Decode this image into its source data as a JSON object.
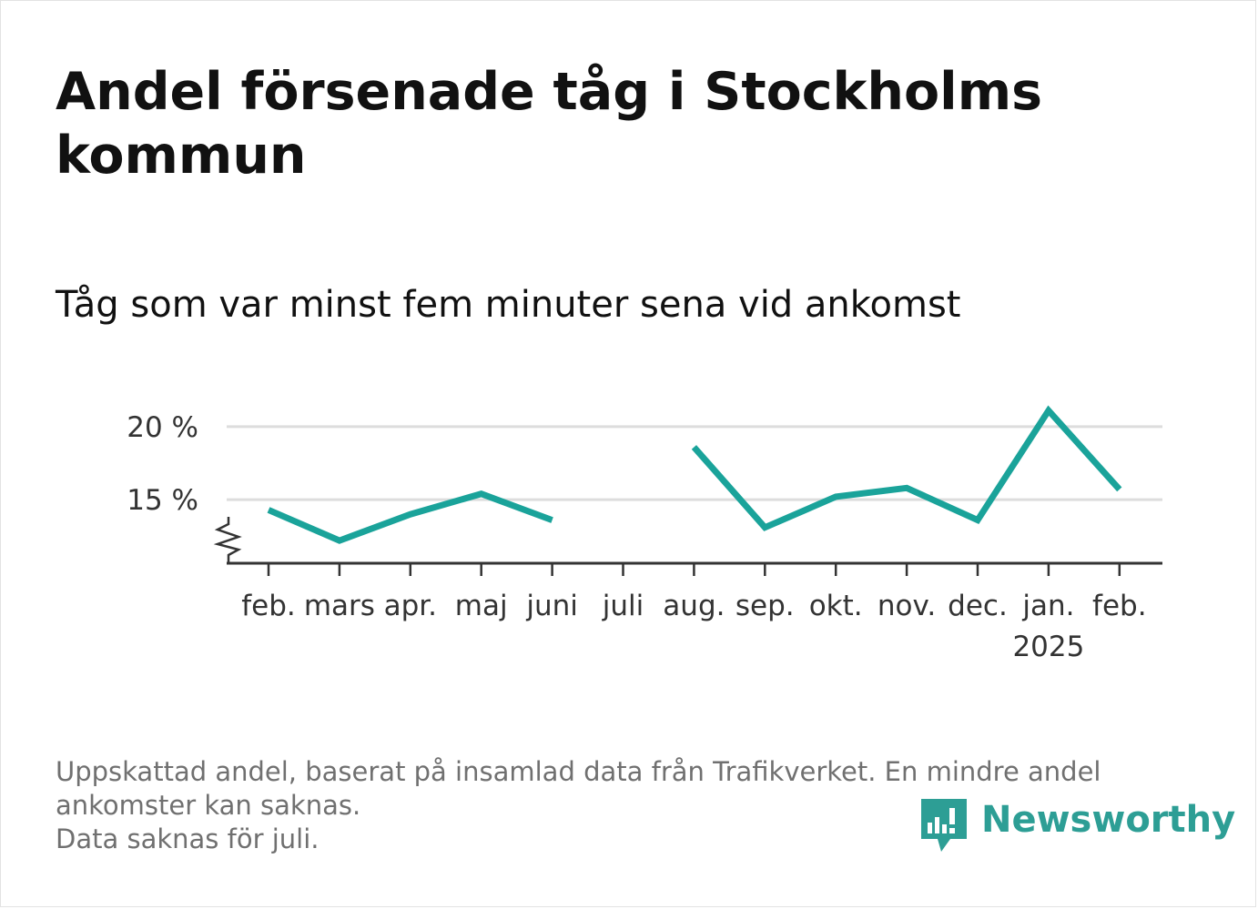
{
  "title": "Andel försenade tåg i Stockholms kommun",
  "subtitle": "Tåg som var minst fem minuter sena vid ankomst",
  "footer": {
    "line1": "Uppskattad andel, baserat på insamlad data från Trafikverket. En mindre andel",
    "line2": "ankomster kan saknas.",
    "line3": "Data saknas för juli."
  },
  "brand": {
    "name": "Newsworthy",
    "icon": "newsworthy-logo-icon",
    "color": "#2d9e95"
  },
  "colors": {
    "line": "#1aa39a",
    "grid": "#dddddd",
    "axis": "#333333",
    "text": "#333333"
  },
  "chart_data": {
    "type": "line",
    "x_labels": [
      "feb.",
      "mars",
      "apr.",
      "maj",
      "juni",
      "juli",
      "aug.",
      "sep.",
      "okt.",
      "nov.",
      "dec.",
      "jan.",
      "feb."
    ],
    "year_label": {
      "text": "2025",
      "under": "jan."
    },
    "series": [
      {
        "values": [
          14.3,
          12.2,
          14.0,
          15.4,
          13.6,
          null,
          18.6,
          13.1,
          15.2,
          15.8,
          13.6,
          21.1,
          15.7
        ]
      }
    ],
    "y_ticks": [
      15,
      20
    ],
    "y_tick_labels": [
      "15 %",
      "20 %"
    ],
    "ylim": [
      10.4,
      21.8
    ],
    "axis_break": true,
    "grid": true,
    "legend": "none"
  }
}
